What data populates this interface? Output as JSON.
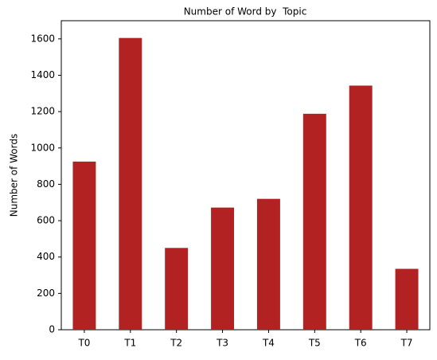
{
  "chart_data": {
    "type": "bar",
    "title": "Number of Word by  Topic",
    "y_label": "Number of Words",
    "categories": [
      "T0",
      "T1",
      "T2",
      "T3",
      "T4",
      "T5",
      "T6",
      "T7"
    ],
    "values": [
      925,
      1605,
      450,
      672,
      720,
      1188,
      1343,
      335
    ],
    "color": "#b22222",
    "ylim": [
      0,
      1700
    ],
    "yticks": [
      0,
      200,
      400,
      600,
      800,
      1000,
      1200,
      1400,
      1600
    ],
    "grid": false
  }
}
